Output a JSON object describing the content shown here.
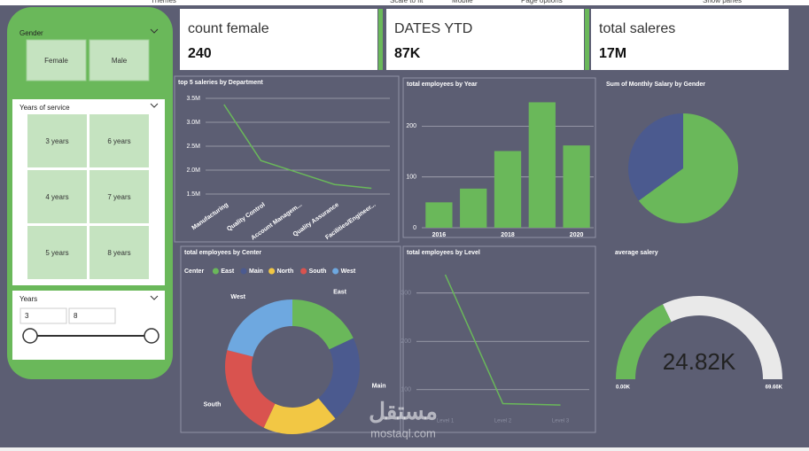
{
  "menu": [
    "Themes",
    "Scale to fit",
    "Mobile",
    "Page options",
    "Show panes"
  ],
  "cards": [
    {
      "title": "count female",
      "value": 240
    },
    {
      "title": "DATES YTD",
      "value": "87K"
    },
    {
      "title": "total saleres",
      "value": "17M"
    }
  ],
  "slicers": {
    "gender": {
      "title": "Gender",
      "options": [
        "Female",
        "Male"
      ]
    },
    "service": {
      "title": "Years of service",
      "options": [
        "3 years",
        "6 years",
        "4 years",
        "7 years",
        "5 years",
        "8 years"
      ]
    },
    "years": {
      "title": "Years",
      "from": 3,
      "to": 8
    }
  },
  "chart_data": [
    {
      "type": "line",
      "title": "top 5 saleries by  Department",
      "color": "#6ab85a",
      "categories": [
        "Manufacturing",
        "Quality Control",
        "Account Managem...",
        "Quality Assurance",
        "Facilities/Engineer..."
      ],
      "values": [
        3370000,
        2200000,
        1950000,
        1700000,
        1620000
      ],
      "ylim": [
        1400000,
        3600000
      ],
      "yticks": [
        {
          "value": 1500000,
          "label": "1.5M"
        },
        {
          "value": 2000000,
          "label": "2.0M"
        },
        {
          "value": 2500000,
          "label": "2.5M"
        },
        {
          "value": 3000000,
          "label": "3.0M"
        },
        {
          "value": 3500000,
          "label": "3.5M"
        }
      ],
      "grid": true,
      "rotate_labels": true
    },
    {
      "type": "bar",
      "title": "total employees by Year",
      "color": "#6ab85a",
      "categories": [
        "2016",
        null,
        "2018",
        null,
        "2020"
      ],
      "values": [
        50,
        77,
        151,
        247,
        162
      ],
      "ylim": [
        0,
        260
      ],
      "yticks": [
        0,
        100,
        200
      ],
      "grid": true
    },
    {
      "type": "pie",
      "title": "Sum of Monthly Salary by Gender",
      "values": [
        65,
        35
      ],
      "colors": [
        "#6ab85a",
        "#4b5a8f"
      ]
    },
    {
      "type": "donut",
      "title": "total employees by Center",
      "legend_title": "Center",
      "categories": [
        "East",
        "Main",
        "North",
        "South",
        "West"
      ],
      "values": [
        18,
        21,
        18,
        22,
        21
      ],
      "colors": [
        "#6ab85a",
        "#4b5a8f",
        "#f2c744",
        "#d9534f",
        "#6ea8e0"
      ]
    },
    {
      "type": "line",
      "title": "total employees by Level",
      "color": "#6ab85a",
      "tick_color": "#8a8da0",
      "categories": [
        "Level 1",
        "Level 2",
        "Level 3"
      ],
      "values": [
        338,
        71,
        68
      ],
      "ylim": [
        50,
        360
      ],
      "yticks": [
        100,
        200,
        300
      ],
      "grid": true
    },
    {
      "type": "gauge",
      "title": "average salery",
      "value": 24820,
      "value_label": "24.82K",
      "min": 0,
      "min_label": "0.00K",
      "max": 69660,
      "max_label": "69.66K",
      "color": "#6ab85a",
      "track_color": "#e9e9e9"
    }
  ],
  "watermark": [
    "مستقل",
    "mostaql.com"
  ]
}
